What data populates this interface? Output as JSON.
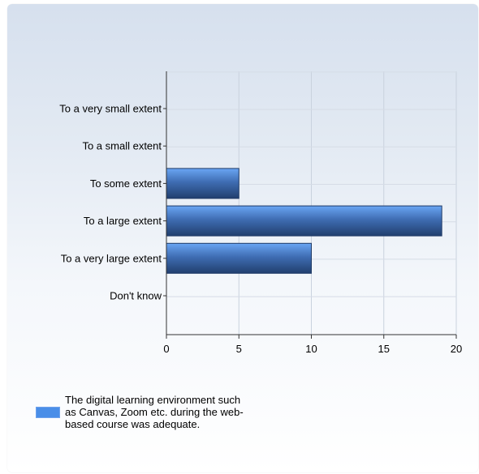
{
  "chart_data": {
    "type": "bar",
    "orientation": "horizontal",
    "categories": [
      "To a very small extent",
      "To a small extent",
      "To some extent",
      "To a large extent",
      "To a very large extent",
      "Don't know"
    ],
    "series": [
      {
        "name": "The digital learning environment such as Canvas, Zoom etc. during the web-based course was adequate.",
        "values": [
          0,
          0,
          5,
          19,
          10,
          0
        ]
      }
    ],
    "xlim": [
      0,
      20
    ],
    "xticks": [
      0,
      5,
      10,
      15,
      20
    ],
    "grid": true,
    "legend_position": "bottom-left",
    "bar_color": "#4a8ee8",
    "title": "",
    "xlabel": "",
    "ylabel": ""
  }
}
